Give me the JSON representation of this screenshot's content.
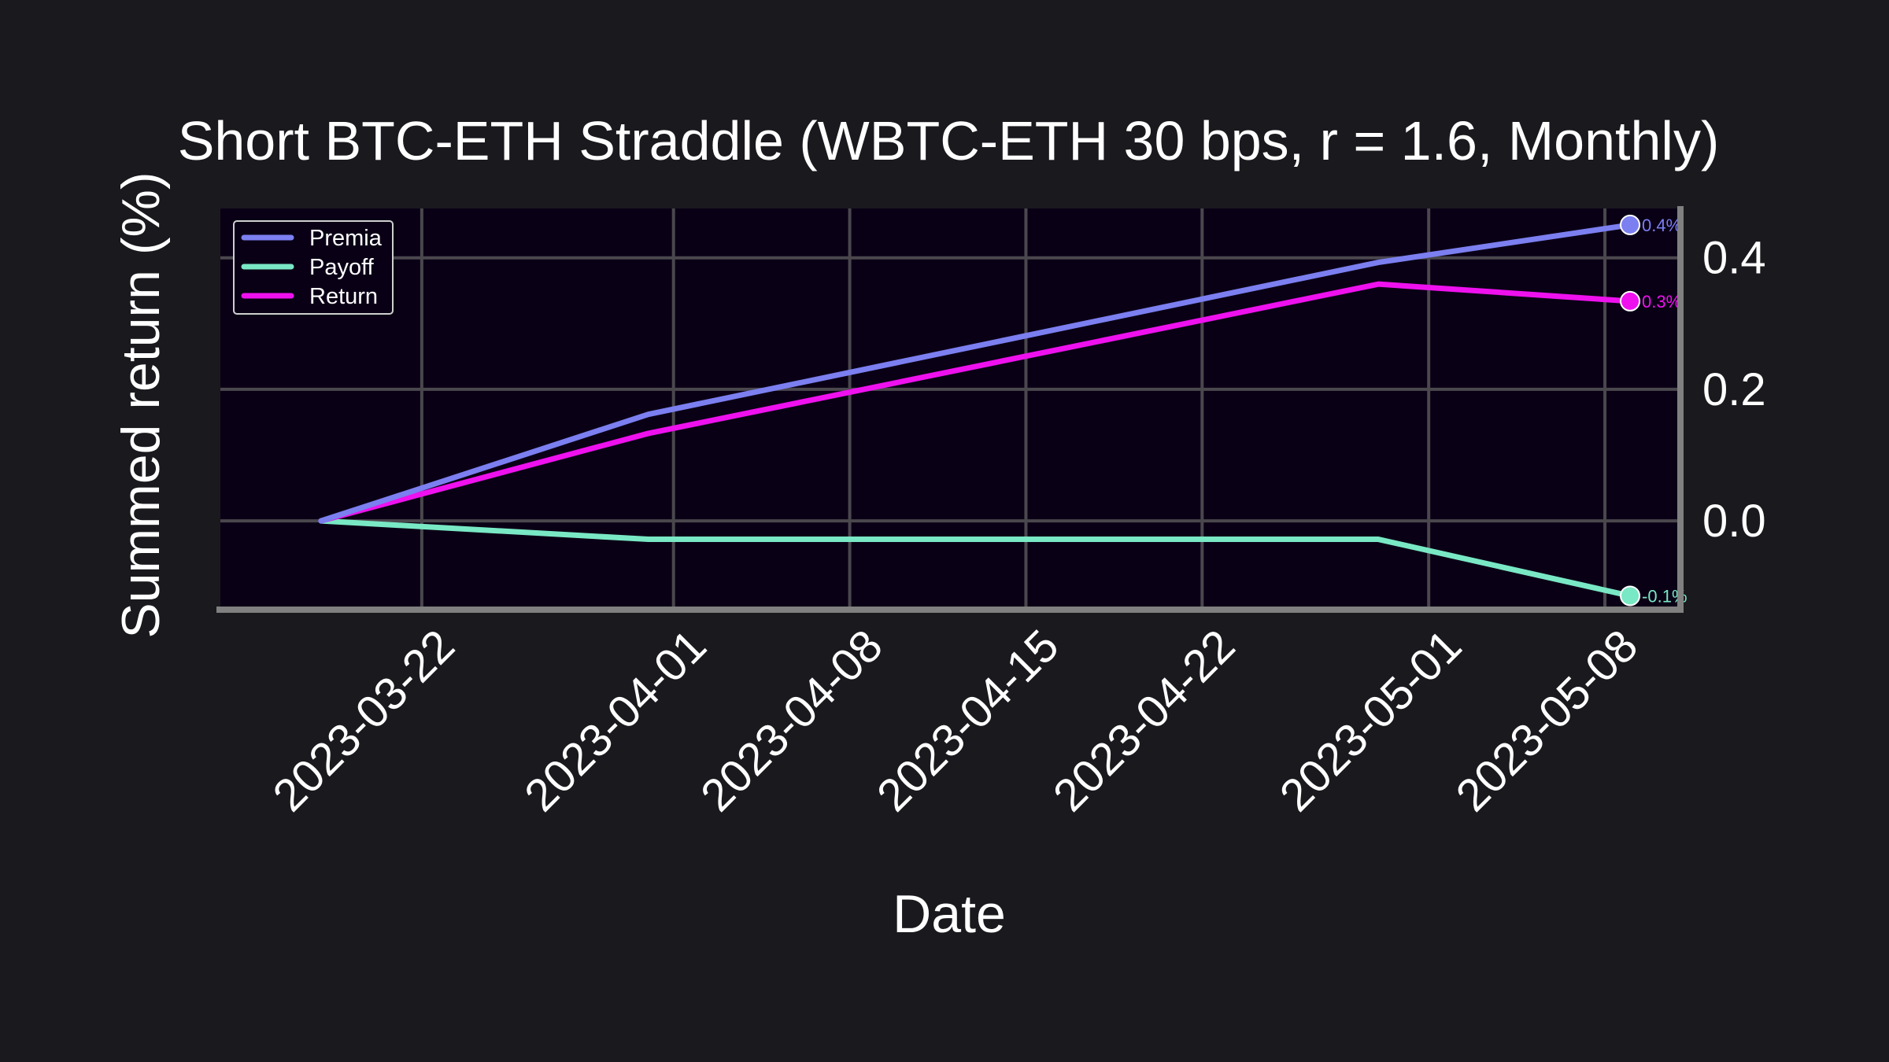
{
  "chart_data": {
    "type": "line",
    "title": "Short BTC-ETH Straddle (WBTC-ETH 30 bps, r = 1.6, Monthly)",
    "xlabel": "Date",
    "ylabel": "Summed return (%)",
    "x": [
      "2023-03-18",
      "2023-03-31",
      "2023-04-29",
      "2023-05-09"
    ],
    "xticks": [
      "2023-03-22",
      "2023-04-01",
      "2023-04-08",
      "2023-04-15",
      "2023-04-22",
      "2023-05-01",
      "2023-05-08"
    ],
    "yticks": [
      "0.0",
      "0.2",
      "0.4"
    ],
    "ylim": [
      -0.135,
      0.475
    ],
    "grid": true,
    "legend_position": "top-left",
    "series": [
      {
        "name": "Premia",
        "color": "#7b7ff0",
        "values": [
          0.0,
          0.162,
          0.393,
          0.45
        ],
        "end_label": "0.4%"
      },
      {
        "name": "Payoff",
        "color": "#79e8c4",
        "values": [
          0.0,
          -0.028,
          -0.028,
          -0.114
        ],
        "end_label": "-0.1%"
      },
      {
        "name": "Return",
        "color": "#ee11ee",
        "values": [
          0.0,
          0.133,
          0.36,
          0.334
        ],
        "end_label": "0.3%"
      }
    ]
  }
}
